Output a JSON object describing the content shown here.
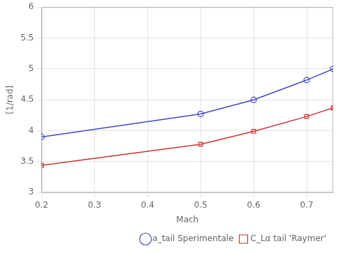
{
  "chart_data": {
    "type": "line",
    "xlabel": "Mach",
    "ylabel": "[1/rad]",
    "x": [
      0.2,
      0.5,
      0.6,
      0.7,
      0.75
    ],
    "series": [
      {
        "name": "a_tail Sperimentale",
        "color": "#4444cc",
        "marker": "circle",
        "line_style": "solid",
        "values": [
          3.9,
          4.27,
          4.5,
          4.82,
          5.0
        ]
      },
      {
        "name": "C_Lα tail 'Raymer'",
        "color": "#cc3333",
        "marker": "square",
        "line_style": "solid",
        "values": [
          3.44,
          3.78,
          3.99,
          4.23,
          4.37
        ]
      }
    ],
    "xlim": [
      0.2,
      0.75
    ],
    "xticks": [
      0.2,
      0.3,
      0.4,
      0.5,
      0.6,
      0.7
    ],
    "ylim": [
      3,
      6
    ],
    "yticks": [
      3,
      3.5,
      4,
      4.5,
      5,
      5.5,
      6
    ],
    "grid": true,
    "legend": "lower right"
  }
}
